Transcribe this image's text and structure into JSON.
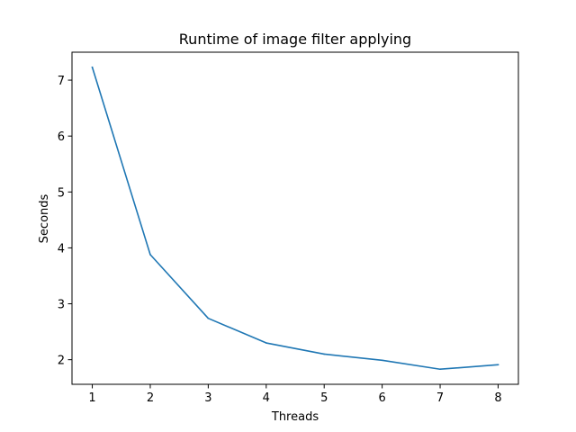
{
  "chart_data": {
    "type": "line",
    "title": "Runtime of image filter applying",
    "xlabel": "Threads",
    "ylabel": "Seconds",
    "x": [
      1,
      2,
      3,
      4,
      5,
      6,
      7,
      8
    ],
    "series": [
      {
        "values": [
          7.23,
          3.88,
          2.74,
          2.3,
          2.1,
          1.99,
          1.83,
          1.91
        ]
      }
    ],
    "xlim": [
      0.65,
      8.35
    ],
    "ylim": [
      1.56,
      7.5
    ],
    "xticks": [
      1,
      2,
      3,
      4,
      5,
      6,
      7,
      8
    ],
    "yticks": [
      2,
      3,
      4,
      5,
      6,
      7
    ],
    "grid": false,
    "line_color": "#1f77b4"
  }
}
